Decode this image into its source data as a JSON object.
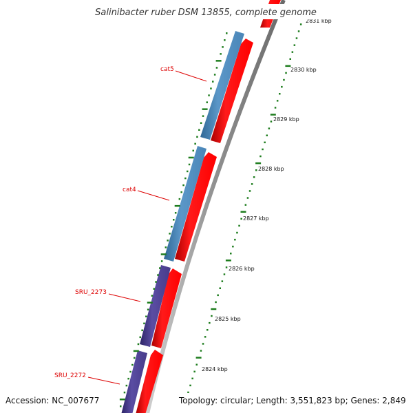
{
  "title": "Salinibacter ruber DSM 13855, complete genome",
  "footer": {
    "accession": "Accession: NC_007677",
    "summary": "Topology: circular; Length: 3,551,823 bp; Genes: 2,849"
  },
  "genes": [
    {
      "label": "cat5"
    },
    {
      "label": "cat4"
    },
    {
      "label": "SRU_2273"
    },
    {
      "label": "SRU_2272"
    }
  ],
  "ticks": [
    {
      "label": "2831 kbp"
    },
    {
      "label": "2830 kbp"
    },
    {
      "label": "2829 kbp"
    },
    {
      "label": "2828 kbp"
    },
    {
      "label": "2827 kbp"
    },
    {
      "label": "2826 kbp"
    },
    {
      "label": "2825 kbp"
    },
    {
      "label": "2824 kbp"
    }
  ],
  "colors": {
    "forward_cds": "#ff0000",
    "cat_genes": "#4a86b8",
    "sru_genes": "#4a3d8f",
    "backbone": "#808080",
    "tick_marks": "#1e7d1e",
    "label_text": "#dd0000"
  }
}
